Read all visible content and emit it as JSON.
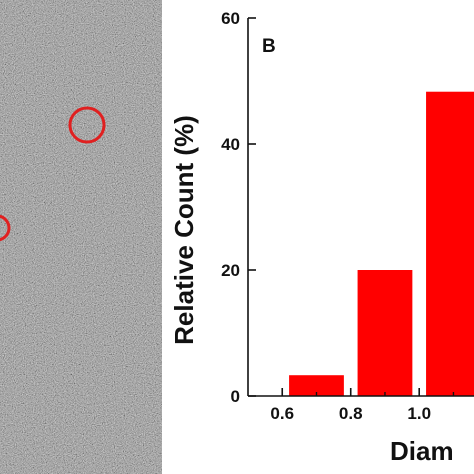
{
  "micrograph": {
    "description_markers": "red circles",
    "marker_color": "#e02020"
  },
  "chart_data": {
    "type": "bar",
    "panel_label": "B",
    "x": [
      0.7,
      0.9,
      1.1
    ],
    "values": [
      3.3,
      20,
      48.3
    ],
    "bar_color": "#ff0000",
    "xlim": [
      0.5,
      1.16
    ],
    "ylim": [
      0,
      60
    ],
    "xticks": [
      "0.6",
      "0.8",
      "1.0"
    ],
    "xtick_values": [
      0.6,
      0.8,
      1.0
    ],
    "yticks": [
      "0",
      "20",
      "40",
      "60"
    ],
    "ytick_values": [
      0,
      20,
      40,
      60
    ],
    "ylabel": "Relative Count (%)",
    "xlabel": "Diam"
  }
}
